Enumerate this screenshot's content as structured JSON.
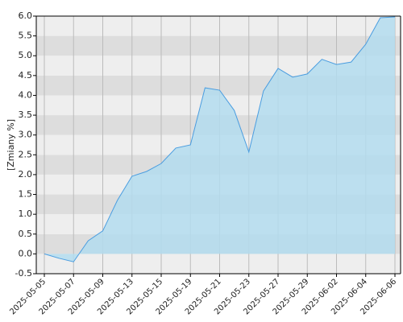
{
  "chart_data": {
    "type": "area",
    "y_label": "[Zmiany %]",
    "categories": [
      "2025-05-05",
      null,
      "2025-05-07",
      null,
      "2025-05-09",
      null,
      "2025-05-13",
      null,
      "2025-05-15",
      null,
      "2025-05-19",
      null,
      "2025-05-21",
      null,
      "2025-05-23",
      null,
      "2025-05-27",
      null,
      "2025-05-29",
      null,
      "2025-06-02",
      null,
      "2025-06-04",
      null,
      "2025-06-06"
    ],
    "series": [
      {
        "color": "#4a9de0",
        "fill": "#b3dcef",
        "values": [
          0.0,
          -0.11,
          -0.2,
          0.33,
          0.58,
          1.35,
          1.96,
          2.08,
          2.28,
          2.67,
          2.75,
          4.19,
          4.13,
          3.62,
          2.57,
          4.11,
          4.68,
          4.46,
          4.54,
          4.91,
          4.78,
          4.84,
          5.29,
          5.96,
          5.98
        ]
      }
    ],
    "ylim": [
      -0.5,
      6.0
    ],
    "yticks": [
      {
        "value": -0.5,
        "label": "-0.5"
      },
      {
        "value": 0,
        "label": "0.0"
      },
      {
        "value": 0.5,
        "label": "0.5"
      },
      {
        "value": 1,
        "label": "1.0"
      },
      {
        "value": 1.5,
        "label": "1.5"
      },
      {
        "value": 2,
        "label": "2.0"
      },
      {
        "value": 2.5,
        "label": "2.5"
      },
      {
        "value": 3,
        "label": "3.0"
      },
      {
        "value": 3.5,
        "label": "3.5"
      },
      {
        "value": 4,
        "label": "4.0"
      },
      {
        "value": 4.5,
        "label": "4.5"
      },
      {
        "value": 5,
        "label": "5.0"
      },
      {
        "value": 5.5,
        "label": "5.5"
      },
      {
        "value": 6,
        "label": "6.0"
      }
    ],
    "grid": true
  }
}
